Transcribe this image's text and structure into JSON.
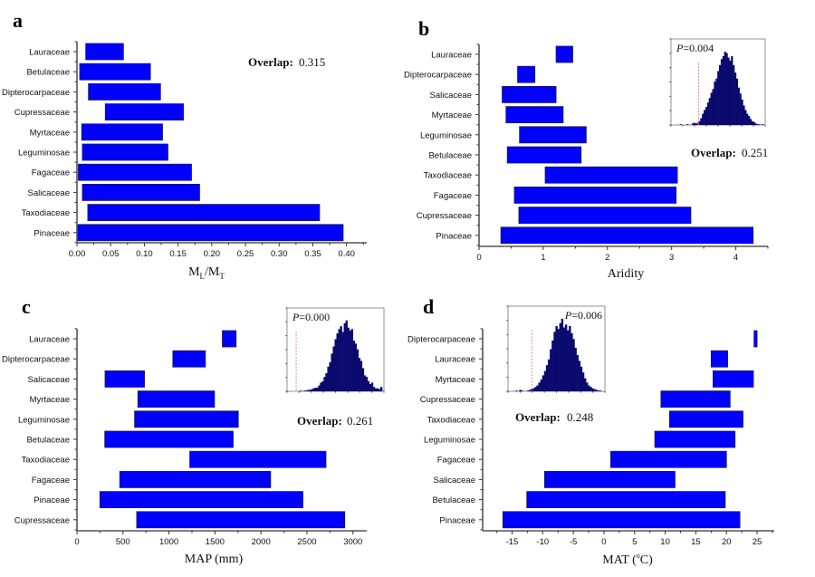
{
  "figure": {
    "panels": [
      "a",
      "b",
      "c",
      "d"
    ]
  },
  "chart_data": [
    {
      "type": "bar",
      "subtype": "floating-horizontal-range",
      "panel_label": "a",
      "title": "",
      "xlabel": "M_L/M_T",
      "xlabel_main": "M",
      "xlabel_sub1": "L",
      "xlabel_sep": "/M",
      "xlabel_sub2": "T",
      "ylabel": "",
      "xlim": [
        0.0,
        0.43
      ],
      "xticks": [
        0.0,
        0.05,
        0.1,
        0.15,
        0.2,
        0.25,
        0.3,
        0.35,
        0.4
      ],
      "xtick_labels": [
        "0.00",
        "0.05",
        "0.10",
        "0.15",
        "0.20",
        "0.25",
        "0.30",
        "0.35",
        "0.40"
      ],
      "categories": [
        "Lauraceae",
        "Betulaceae",
        "Dipterocarpaceae",
        "Cupressaceae",
        "Myrtaceae",
        "Leguminosae",
        "Fagaceae",
        "Salicaceae",
        "Taxodiaceae",
        "Pinaceae"
      ],
      "ranges": [
        [
          0.013,
          0.069
        ],
        [
          0.004,
          0.109
        ],
        [
          0.017,
          0.124
        ],
        [
          0.042,
          0.158
        ],
        [
          0.007,
          0.127
        ],
        [
          0.008,
          0.135
        ],
        [
          0.002,
          0.17
        ],
        [
          0.008,
          0.182
        ],
        [
          0.016,
          0.36
        ],
        [
          0.001,
          0.395
        ]
      ],
      "annotation": {
        "overlap_label": "Overlap:",
        "overlap_value": "0.315"
      },
      "bar_color": "#0000ff",
      "grid": false
    },
    {
      "type": "bar",
      "subtype": "floating-horizontal-range",
      "panel_label": "b",
      "title": "",
      "xlabel": "Aridity",
      "ylabel": "",
      "xlim": [
        0,
        4.5
      ],
      "xticks": [
        0,
        1,
        2,
        3,
        4
      ],
      "xtick_labels": [
        "0",
        "1",
        "2",
        "3",
        "4"
      ],
      "categories": [
        "Lauraceae",
        "Dipterocarpaceae",
        "Salicaceae",
        "Myrtaceae",
        "Leguminosae",
        "Betulaceae",
        "Taxodiaceae",
        "Fagaceae",
        "Cupressaceae",
        "Pinaceae"
      ],
      "ranges": [
        [
          1.2,
          1.46
        ],
        [
          0.6,
          0.87
        ],
        [
          0.36,
          1.2
        ],
        [
          0.42,
          1.31
        ],
        [
          0.63,
          1.67
        ],
        [
          0.44,
          1.59
        ],
        [
          1.03,
          3.09
        ],
        [
          0.55,
          3.07
        ],
        [
          0.62,
          3.3
        ],
        [
          0.34,
          4.27
        ]
      ],
      "annotation": {
        "overlap_label": "Overlap:",
        "overlap_value": "0.251"
      },
      "inset": {
        "type": "histogram",
        "p_label": "P",
        "p_value": "=0.004",
        "observed_position": 0.27,
        "bins": [
          0,
          0,
          0,
          1,
          0,
          0,
          0,
          1,
          0,
          0,
          2,
          3,
          2,
          3,
          5,
          9,
          15,
          20,
          24,
          30,
          36,
          43,
          48,
          58,
          62,
          72,
          80,
          88,
          92,
          98,
          96,
          90,
          86,
          92,
          80,
          70,
          62,
          50,
          42,
          34,
          26,
          20,
          15,
          12,
          8,
          5,
          4,
          2,
          1,
          1,
          0,
          1
        ]
      },
      "bar_color": "#0000ff",
      "grid": false
    },
    {
      "type": "bar",
      "subtype": "floating-horizontal-range",
      "panel_label": "c",
      "title": "",
      "xlabel": "MAP (mm)",
      "ylabel": "",
      "xlim": [
        0,
        3150
      ],
      "xticks": [
        0,
        500,
        1000,
        1500,
        2000,
        2500,
        3000
      ],
      "xtick_labels": [
        "0",
        "500",
        "1000",
        "1500",
        "2000",
        "2500",
        "3000"
      ],
      "categories": [
        "Lauraceae",
        "Dipterocarpaceae",
        "Salicaceae",
        "Myrtaceae",
        "Leguminosae",
        "Betulaceae",
        "Taxodiaceae",
        "Fagaceae",
        "Pinaceae",
        "Cupressaceae"
      ],
      "ranges": [
        [
          1580,
          1730
        ],
        [
          1042,
          1396
        ],
        [
          305,
          734
        ],
        [
          662,
          1495
        ],
        [
          626,
          1754
        ],
        [
          302,
          1698
        ],
        [
          1226,
          2707
        ],
        [
          465,
          2105
        ],
        [
          249,
          2456
        ],
        [
          649,
          2911
        ]
      ],
      "annotation": {
        "overlap_label": "Overlap:",
        "overlap_value": "0.261"
      },
      "inset": {
        "type": "histogram",
        "p_label": "P",
        "p_value": "=0.000",
        "observed_position": 0.06,
        "bins": [
          0,
          0,
          0,
          0,
          0,
          1,
          0,
          1,
          1,
          2,
          2,
          3,
          4,
          5,
          5,
          8,
          12,
          14,
          20,
          25,
          34,
          40,
          52,
          62,
          72,
          80,
          86,
          90,
          82,
          94,
          98,
          88,
          84,
          86,
          70,
          66,
          58,
          46,
          42,
          32,
          22,
          20,
          14,
          10,
          12,
          6,
          4,
          4,
          3,
          6
        ]
      },
      "bar_color": "#0000ff",
      "grid": false
    },
    {
      "type": "bar",
      "subtype": "floating-horizontal-range",
      "panel_label": "d",
      "title": "",
      "xlabel": "MAT (°C)",
      "xlabel_main": "MAT (",
      "xlabel_sup": "o",
      "xlabel_end": "C)",
      "ylabel": "",
      "xlim": [
        -19.8,
        27.8
      ],
      "xticks": [
        -15,
        -10,
        -5,
        0,
        5,
        10,
        15,
        20,
        25
      ],
      "xtick_labels": [
        "-15",
        "-10",
        "-5",
        "0",
        "5",
        "10",
        "15",
        "20",
        "25"
      ],
      "categories": [
        "Dipterocarpaceae",
        "Lauraceae",
        "Myrtaceae",
        "Cupressaceae",
        "Taxodiaceae",
        "Leguminosae",
        "Fagaceae",
        "Salicaceae",
        "Betulaceae",
        "Pinaceae"
      ],
      "ranges": [
        [
          24.5,
          25.0
        ],
        [
          17.5,
          20.2
        ],
        [
          17.8,
          24.4
        ],
        [
          9.3,
          20.6
        ],
        [
          10.7,
          22.7
        ],
        [
          8.3,
          21.4
        ],
        [
          1.1,
          20.0
        ],
        [
          -9.7,
          11.6
        ],
        [
          -12.6,
          19.8
        ],
        [
          -16.5,
          22.2
        ]
      ],
      "annotation": {
        "overlap_label": "Overlap:",
        "overlap_value": "0.248"
      },
      "inset": {
        "type": "histogram",
        "p_label": "P",
        "p_value": "=0.006",
        "observed_position": 0.22,
        "bins": [
          0,
          0,
          1,
          0,
          2,
          1,
          0,
          0,
          1,
          2,
          3,
          4,
          6,
          8,
          12,
          16,
          22,
          28,
          36,
          44,
          58,
          70,
          82,
          90,
          86,
          94,
          100,
          88,
          92,
          84,
          90,
          80,
          72,
          60,
          50,
          42,
          34,
          26,
          18,
          12,
          8,
          6,
          4,
          3,
          2,
          1,
          1,
          0
        ]
      },
      "bar_color": "#0000ff",
      "grid": false
    }
  ]
}
